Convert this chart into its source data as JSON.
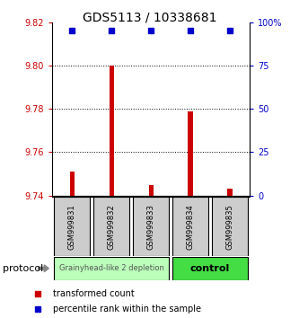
{
  "title": "GDS5113 / 10338681",
  "samples": [
    "GSM999831",
    "GSM999832",
    "GSM999833",
    "GSM999834",
    "GSM999835"
  ],
  "red_values": [
    9.751,
    9.8,
    9.745,
    9.779,
    9.743
  ],
  "blue_values": [
    95,
    95,
    95,
    95,
    95
  ],
  "ylim_left": [
    9.74,
    9.82
  ],
  "ylim_right": [
    0,
    100
  ],
  "yticks_left": [
    9.74,
    9.76,
    9.78,
    9.8,
    9.82
  ],
  "ytick_labels_left": [
    "9.74",
    "9.76",
    "9.78",
    "9.80",
    "9.82"
  ],
  "yticks_right": [
    0,
    25,
    50,
    75,
    100
  ],
  "ytick_labels_right": [
    "0",
    "25",
    "50",
    "75",
    "100%"
  ],
  "group1_label": "Grainyhead-like 2 depletion",
  "group2_label": "control",
  "group1_color": "#bbffbb",
  "group2_color": "#44dd44",
  "group1_indices": [
    0,
    1,
    2
  ],
  "group2_indices": [
    3,
    4
  ],
  "protocol_label": "protocol",
  "legend_red": "transformed count",
  "legend_blue": "percentile rank within the sample",
  "red_color": "#cc0000",
  "blue_color": "#0000cc",
  "bar_base": 9.74,
  "dotted_yticks": [
    9.76,
    9.78,
    9.8
  ],
  "xticklabel_bg": "#cccccc",
  "bar_width": 0.12
}
